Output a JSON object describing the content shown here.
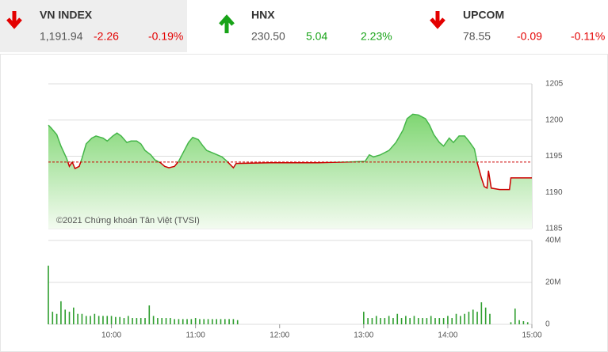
{
  "header": {
    "tickers": [
      {
        "name": "VN INDEX",
        "value": "1,191.94",
        "change": "-2.26",
        "percent": "-0.19%",
        "color": "#e30000"
      },
      {
        "name": "HNX",
        "value": "230.50",
        "change": "5.04",
        "percent": "2.23%",
        "color": "#17a317"
      },
      {
        "name": "UPCOM",
        "value": "78.55",
        "change": "-0.09",
        "percent": "-0.11%",
        "color": "#e30000"
      }
    ]
  },
  "chart_data": [
    {
      "type": "line",
      "annotation": "©2021 Chứng khoán Tân Việt (TVSI)",
      "x": [
        555,
        557,
        561,
        564,
        568,
        570,
        572,
        574,
        577,
        579,
        582,
        586,
        589,
        594,
        597,
        601,
        604,
        607,
        611,
        614,
        618,
        621,
        624,
        628,
        631,
        635,
        638,
        641,
        645,
        648,
        652,
        655,
        658,
        662,
        665,
        668,
        673,
        679,
        683,
        687,
        689,
        713,
        747,
        769,
        781,
        784,
        787,
        792,
        798,
        803,
        808,
        811,
        815,
        819,
        824,
        827,
        830,
        834,
        837,
        841,
        844,
        848,
        852,
        855,
        859,
        861,
        864,
        866,
        868,
        869,
        871,
        877,
        884,
        885,
        900
      ],
      "series": [
        {
          "values": [
            1199.3,
            1198.9,
            1198.0,
            1196.4,
            1194.7,
            1193.6,
            1194.2,
            1193.3,
            1193.6,
            1194.7,
            1196.7,
            1197.5,
            1197.8,
            1197.5,
            1197.1,
            1197.8,
            1198.2,
            1197.8,
            1196.9,
            1197.1,
            1197.1,
            1196.7,
            1195.8,
            1195.2,
            1194.5,
            1194.1,
            1193.6,
            1193.4,
            1193.6,
            1194.3,
            1195.8,
            1196.9,
            1197.6,
            1197.3,
            1196.5,
            1195.8,
            1195.4,
            1194.9,
            1194.2,
            1193.4,
            1194.0,
            1194.1,
            1194.1,
            1194.2,
            1194.3,
            1195.2,
            1194.9,
            1195.2,
            1195.8,
            1196.9,
            1198.6,
            1200.2,
            1200.8,
            1200.7,
            1200.2,
            1199.3,
            1198.0,
            1196.9,
            1196.4,
            1197.5,
            1196.9,
            1197.8,
            1197.8,
            1197.1,
            1196.0,
            1194.1,
            1192.0,
            1190.8,
            1190.6,
            1193.0,
            1190.6,
            1190.4,
            1190.4,
            1192.0,
            1192.0
          ],
          "color": "#45b649"
        }
      ],
      "reference": {
        "value": 1194.2,
        "color": "#cc0000"
      },
      "xlim": [
        555,
        900
      ],
      "ylim": [
        1185,
        1205
      ],
      "yticks": [
        1185,
        1190,
        1195,
        1200,
        1205
      ],
      "grid": true
    },
    {
      "type": "bar",
      "x": [
        555,
        558,
        561,
        564,
        567,
        570,
        573,
        576,
        579,
        582,
        585,
        588,
        591,
        594,
        597,
        600,
        603,
        606,
        609,
        612,
        615,
        618,
        621,
        624,
        627,
        630,
        633,
        636,
        639,
        642,
        645,
        648,
        651,
        654,
        657,
        660,
        663,
        666,
        669,
        672,
        675,
        678,
        681,
        684,
        687,
        690,
        780,
        783,
        786,
        789,
        792,
        795,
        798,
        801,
        804,
        807,
        810,
        813,
        816,
        819,
        822,
        825,
        828,
        831,
        834,
        837,
        840,
        843,
        846,
        849,
        852,
        855,
        858,
        861,
        864,
        867,
        870,
        885,
        888,
        891,
        894,
        897
      ],
      "values": [
        28,
        6,
        5,
        11,
        7,
        6,
        8,
        5,
        5,
        4,
        4,
        5,
        4,
        4,
        4,
        4,
        3.5,
        3.5,
        3,
        4,
        3,
        3,
        3,
        3,
        9,
        4,
        3,
        3,
        3,
        3,
        2.5,
        2.5,
        2.5,
        2.5,
        2.5,
        3,
        2.5,
        2.5,
        2.5,
        2.5,
        2.5,
        2.5,
        2.5,
        2.5,
        2.5,
        2,
        6,
        3,
        3,
        4,
        3,
        3,
        4,
        3,
        5,
        3,
        4,
        3,
        4,
        3,
        3,
        3,
        4,
        3,
        3,
        3,
        4,
        3,
        5,
        4,
        5,
        6,
        7,
        6,
        10.5,
        8,
        5,
        1,
        7.5,
        2,
        1.5,
        1
      ],
      "color": "#2e9e2e",
      "xlim": [
        555,
        900
      ],
      "ylim": [
        0,
        40
      ],
      "yticks": [
        0,
        {
          "value": 20,
          "label": "20M"
        },
        {
          "value": 40,
          "label": "40M"
        }
      ],
      "xticks": [
        {
          "value": 600,
          "label": "10:00"
        },
        {
          "value": 660,
          "label": "11:00"
        },
        {
          "value": 720,
          "label": "12:00"
        },
        {
          "value": 780,
          "label": "13:00"
        },
        {
          "value": 840,
          "label": "14:00"
        },
        {
          "value": 900,
          "label": "15:00"
        }
      ],
      "grid": true
    }
  ]
}
